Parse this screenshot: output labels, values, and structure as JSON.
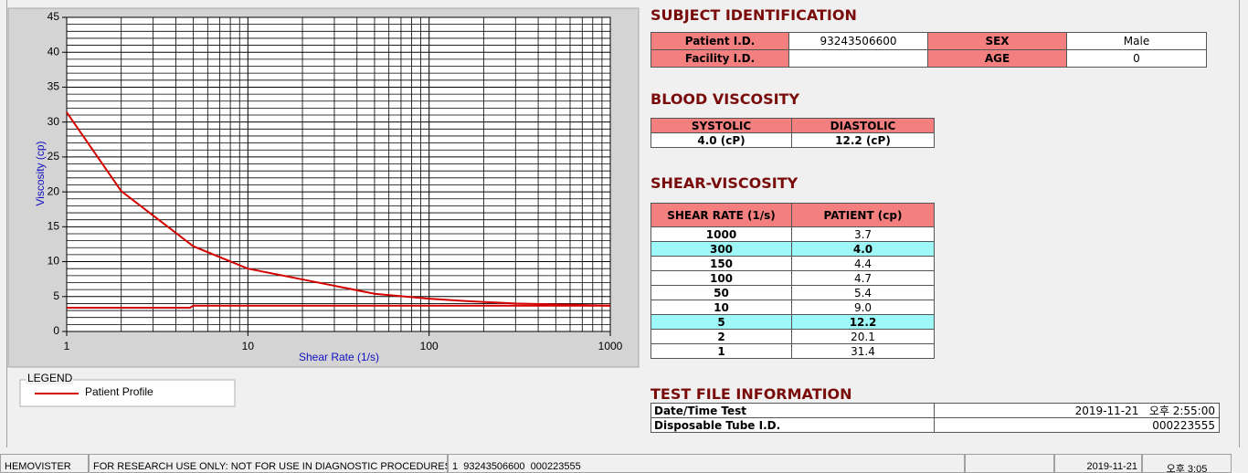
{
  "chart_data": {
    "type": "line",
    "xlabel": "Shear Rate (1/s)",
    "ylabel": "Viscosity (cp)",
    "log_x": true,
    "xlim": [
      1,
      1000
    ],
    "xticks": [
      1,
      10,
      100,
      1000
    ],
    "ylim": [
      0,
      45
    ],
    "yticks": [
      0,
      5,
      10,
      15,
      20,
      25,
      30,
      35,
      40,
      45
    ],
    "grid": true,
    "minor_grid": true,
    "legend_title": "LEGEND",
    "series": [
      {
        "name": "Patient Profile",
        "color": "#d40000",
        "x": [
          1,
          2,
          5,
          10,
          50,
          100,
          150,
          300,
          1000
        ],
        "values": [
          31.4,
          20.1,
          12.2,
          9.0,
          5.4,
          4.7,
          4.4,
          4.0,
          3.7
        ]
      },
      {
        "color": "#d40000",
        "x": [
          1,
          4.8,
          5,
          1000
        ],
        "values": [
          3.4,
          3.4,
          3.7,
          3.7
        ]
      }
    ]
  },
  "subject": {
    "title": "SUBJECT IDENTIFICATION",
    "fields": [
      {
        "label": "Patient I.D.",
        "value": "93243506600"
      },
      {
        "label": "SEX",
        "value": "Male"
      },
      {
        "label": "Facility I.D."
      },
      {
        "label": "AGE",
        "value": "0"
      }
    ]
  },
  "blood": {
    "title": "BLOOD VISCOSITY",
    "headers": [
      "SYSTOLIC",
      "DIASTOLIC"
    ],
    "values": [
      "4.0 (cP)",
      "12.2 (cP)"
    ]
  },
  "shear": {
    "title": "SHEAR-VISCOSITY",
    "headers": [
      "SHEAR RATE (1/s)",
      "PATIENT (cp)"
    ],
    "rows": [
      [
        "1000",
        "3.7"
      ],
      [
        "300",
        "4.0"
      ],
      [
        "150",
        "4.4"
      ],
      [
        "100",
        "4.7"
      ],
      [
        "50",
        "5.4"
      ],
      [
        "10",
        "9.0"
      ],
      [
        "5",
        "12.2"
      ],
      [
        "2",
        "20.1"
      ],
      [
        "1",
        "31.4"
      ]
    ],
    "highlight_rows": [
      1,
      6
    ],
    "highlight_color": "#9ff8f8"
  },
  "test_file": {
    "title": "TEST FILE INFORMATION",
    "rows": [
      [
        "Date/Time Test",
        "2019-11-21   오후 2:55:00"
      ],
      [
        "Disposable Tube I.D.",
        "000223555"
      ]
    ]
  },
  "status_bar": [
    "HEMOVISTER",
    "FOR RESEARCH USE ONLY: NOT FOR USE IN DIAGNOSTIC PROCEDURES",
    "1  93243506600  000223555",
    "2019-11-21",
    "오후 3:05"
  ]
}
